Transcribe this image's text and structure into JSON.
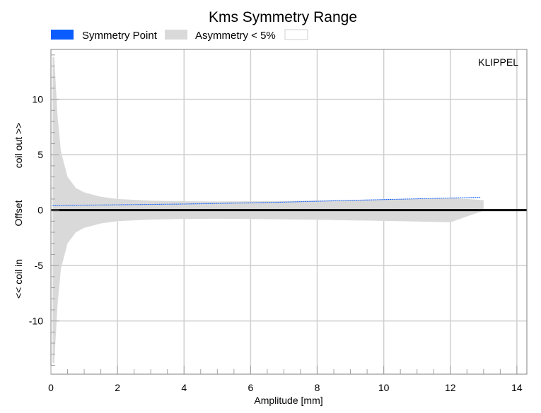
{
  "chart_data": {
    "type": "area",
    "title": "Kms Symmetry Range",
    "xlabel": "Amplitude [mm]",
    "ylabel_parts": [
      "<< coil in",
      "Offset",
      "coil out >>"
    ],
    "xlim": [
      0,
      14.3
    ],
    "ylim": [
      -14.8,
      14.5
    ],
    "xticks": [
      0,
      2,
      4,
      6,
      8,
      10,
      12,
      14
    ],
    "yticks": [
      -10,
      -5,
      0,
      5,
      10
    ],
    "grid": true,
    "legend_position": "top",
    "watermark": "KLIPPEL",
    "series": [
      {
        "name": "Symmetry Point",
        "color": "#0a5cff",
        "x": [
          0.05,
          1,
          2,
          3,
          4,
          5,
          6,
          7,
          8,
          9,
          10,
          11,
          12,
          12.9
        ],
        "y": [
          0.4,
          0.45,
          0.48,
          0.52,
          0.55,
          0.6,
          0.66,
          0.72,
          0.8,
          0.88,
          0.95,
          1.02,
          1.1,
          1.15
        ]
      },
      {
        "name": "Asymmetry < 5%",
        "color": "#d9d9d9",
        "x": [
          0.05,
          0.1,
          0.2,
          0.3,
          0.5,
          0.75,
          1,
          1.5,
          2,
          3,
          4,
          5,
          6,
          7,
          8,
          9,
          10,
          11,
          12,
          13
        ],
        "upper": [
          13.8,
          13.8,
          8.5,
          5.3,
          3.0,
          2.0,
          1.6,
          1.2,
          1.0,
          0.85,
          0.8,
          0.78,
          0.8,
          0.83,
          0.87,
          0.92,
          0.97,
          1.03,
          1.1,
          0.9
        ],
        "lower": [
          -13.8,
          -13.8,
          -8.5,
          -5.3,
          -3.0,
          -2.0,
          -1.6,
          -1.2,
          -1.0,
          -0.85,
          -0.8,
          -0.78,
          -0.8,
          -0.83,
          -0.87,
          -0.92,
          -0.97,
          -1.03,
          -1.1,
          -0.05
        ]
      }
    ],
    "reference_lines": [
      {
        "name": "zero-offset-line",
        "y": 0,
        "color": "#000000"
      }
    ],
    "legend": [
      {
        "label": "Symmetry Point",
        "color": "#0a5cff"
      },
      {
        "label": "Asymmetry < 5%",
        "color": "#d9d9d9"
      },
      {
        "label": "",
        "color": "#ffffff"
      }
    ]
  }
}
